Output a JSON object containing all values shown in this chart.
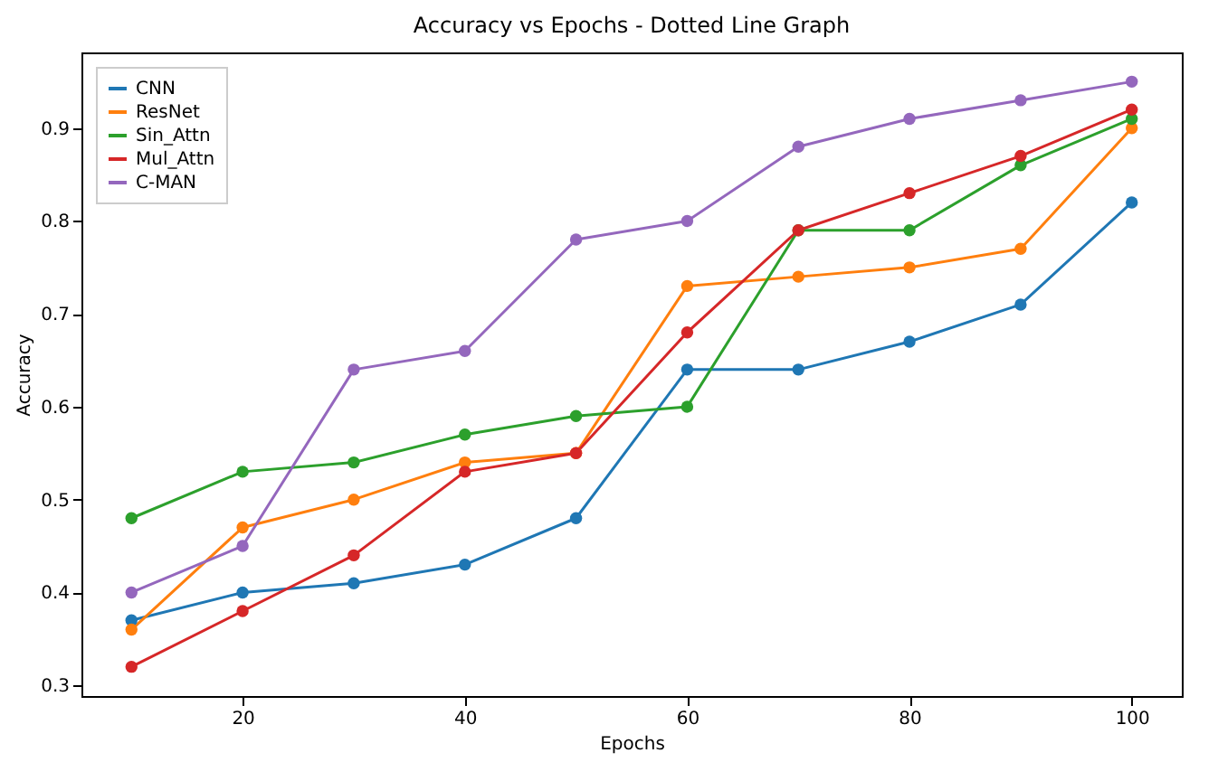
{
  "chart_data": {
    "type": "line",
    "title": "Accuracy vs Epochs - Dotted Line Graph",
    "xlabel": "Epochs",
    "ylabel": "Accuracy",
    "x": [
      10,
      20,
      30,
      40,
      50,
      60,
      70,
      80,
      90,
      100
    ],
    "series": [
      {
        "name": "CNN",
        "color": "#1f77b4",
        "values": [
          0.37,
          0.4,
          0.41,
          0.43,
          0.48,
          0.64,
          0.64,
          0.67,
          0.71,
          0.82
        ]
      },
      {
        "name": "ResNet",
        "color": "#ff7f0e",
        "values": [
          0.36,
          0.47,
          0.5,
          0.54,
          0.55,
          0.73,
          0.74,
          0.75,
          0.77,
          0.9
        ]
      },
      {
        "name": "Sin_Attn",
        "color": "#2ca02c",
        "values": [
          0.48,
          0.53,
          0.54,
          0.57,
          0.59,
          0.6,
          0.79,
          0.79,
          0.86,
          0.91
        ]
      },
      {
        "name": "Mul_Attn",
        "color": "#d62728",
        "values": [
          0.32,
          0.38,
          0.44,
          0.53,
          0.55,
          0.68,
          0.79,
          0.83,
          0.87,
          0.92
        ]
      },
      {
        "name": "C-MAN",
        "color": "#9467bd",
        "values": [
          0.4,
          0.45,
          0.64,
          0.66,
          0.78,
          0.8,
          0.88,
          0.91,
          0.93,
          0.95
        ]
      }
    ],
    "xlim": [
      5.5,
      104.5
    ],
    "xticks": [
      20,
      40,
      60,
      80,
      100
    ],
    "ylim": [
      0.2885,
      0.9815
    ],
    "yticks": [
      0.3,
      0.4,
      0.5,
      0.6,
      0.7,
      0.8,
      0.9
    ],
    "grid": false,
    "legend": "top left",
    "marker": "circle",
    "line_style": "solid"
  }
}
